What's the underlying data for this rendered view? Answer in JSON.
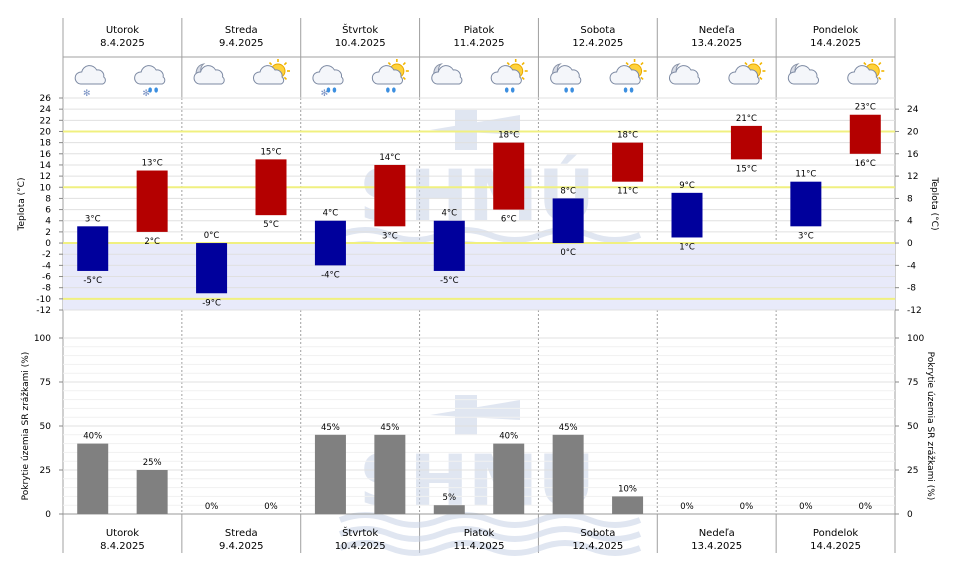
{
  "days": [
    {
      "name": "Utorok",
      "date": "8.4.2025",
      "icons": [
        "snow-cloud-icon",
        "rain-snow-cloud-icon"
      ]
    },
    {
      "name": "Streda",
      "date": "9.4.2025",
      "icons": [
        "moon-cloud-icon",
        "sun-cloud-icon"
      ]
    },
    {
      "name": "Štvrtok",
      "date": "10.4.2025",
      "icons": [
        "rain-snow-cloud-icon",
        "sun-cloud-rain-icon"
      ]
    },
    {
      "name": "Piatok",
      "date": "11.4.2025",
      "icons": [
        "moon-cloud-icon",
        "sun-cloud-rain-icon"
      ]
    },
    {
      "name": "Sobota",
      "date": "12.4.2025",
      "icons": [
        "moon-cloud-rain-icon",
        "sun-cloud-rain-icon"
      ]
    },
    {
      "name": "Nedeľa",
      "date": "13.4.2025",
      "icons": [
        "moon-cloud-icon",
        "sun-behind-cloud-icon"
      ]
    },
    {
      "name": "Pondelok",
      "date": "14.4.2025",
      "icons": [
        "moon-cloud-icon",
        "sun-cloud-icon"
      ]
    }
  ],
  "colors": {
    "night_bar": "#00009c",
    "day_bar": "#b40000",
    "precip_bar": "#808080",
    "highlight_line": "#f0f080",
    "below_zero_fill": "#e8eafa",
    "grid": "#e0e0e0",
    "separator": "#a0a0a0",
    "watermark": "#c8d2e6"
  },
  "watermark_text": "SHMÚ",
  "chart_data": [
    {
      "type": "bar",
      "name": "temperature",
      "ylabel": "Teplota (°C)",
      "ylim": [
        -12,
        26
      ],
      "yticks_left": [
        26,
        24,
        22,
        20,
        18,
        16,
        14,
        12,
        10,
        8,
        6,
        4,
        2,
        0,
        -2,
        -4,
        -6,
        -8,
        -10,
        -12
      ],
      "yticks_right": [
        24,
        20,
        16,
        12,
        8,
        4,
        0,
        -4,
        -8,
        -12
      ],
      "highlight_lines": [
        20,
        10,
        0,
        -10
      ],
      "unit_suffix": "°C",
      "bars": [
        {
          "period": "night",
          "high": 3,
          "low": -5
        },
        {
          "period": "day",
          "high": 13,
          "low": 2
        },
        {
          "period": "night",
          "high": 0,
          "low": -9
        },
        {
          "period": "day",
          "high": 15,
          "low": 5
        },
        {
          "period": "night",
          "high": 4,
          "low": -4
        },
        {
          "period": "day",
          "high": 14,
          "low": 3
        },
        {
          "period": "night",
          "high": 4,
          "low": -5
        },
        {
          "period": "day",
          "high": 18,
          "low": 6
        },
        {
          "period": "night",
          "high": 8,
          "low": 0
        },
        {
          "period": "day",
          "high": 18,
          "low": 11
        },
        {
          "period": "night",
          "high": 9,
          "low": 1
        },
        {
          "period": "day",
          "high": 21,
          "low": 15
        },
        {
          "period": "night",
          "high": 11,
          "low": 3
        },
        {
          "period": "day",
          "high": 23,
          "low": 16
        }
      ]
    },
    {
      "type": "bar",
      "name": "precipitation",
      "ylabel": "Pokrytie územia SR zrážkami (%)",
      "ylim": [
        0,
        100
      ],
      "yticks": [
        100,
        75,
        50,
        25,
        0
      ],
      "unit_suffix": "%",
      "values": [
        40,
        25,
        0,
        0,
        45,
        45,
        5,
        40,
        45,
        10,
        0,
        0,
        0,
        0
      ]
    }
  ]
}
